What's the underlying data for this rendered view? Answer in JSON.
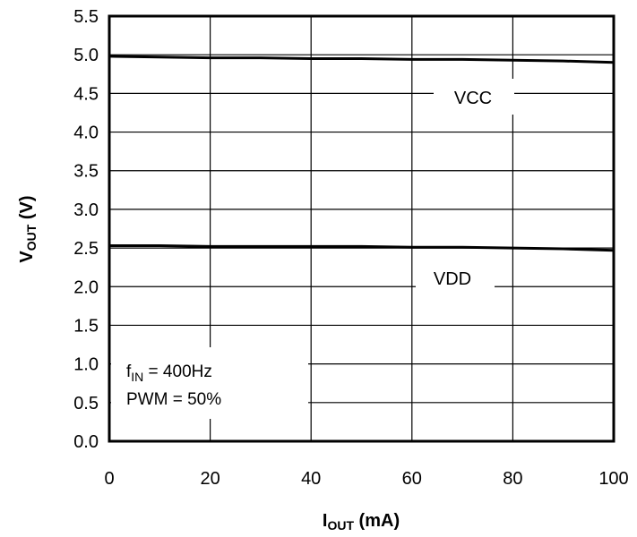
{
  "chart_data": {
    "type": "line",
    "title": "",
    "xlabel": {
      "main": "I",
      "sub": "OUT",
      "suffix": " (mA)"
    },
    "ylabel": {
      "main": "V",
      "sub": "OUT",
      "suffix": " (V)"
    },
    "xlim": [
      0,
      100
    ],
    "ylim": [
      0,
      5.5
    ],
    "xticks": [
      0,
      20,
      40,
      60,
      80,
      100
    ],
    "yticks": [
      0,
      0.5,
      1,
      1.5,
      2,
      2.5,
      3,
      3.5,
      4,
      4.5,
      5,
      5.5
    ],
    "xtick_labels": [
      "0",
      "20",
      "40",
      "60",
      "80",
      "100"
    ],
    "ytick_labels": [
      "0.0",
      "0.5",
      "1.0",
      "1.5",
      "2.0",
      "2.5",
      "3.0",
      "3.5",
      "4.0",
      "4.5",
      "5.0",
      "5.5"
    ],
    "grid": true,
    "series": [
      {
        "name": "VCC",
        "x": [
          0,
          10,
          20,
          30,
          40,
          50,
          60,
          70,
          80,
          90,
          100
        ],
        "y": [
          4.98,
          4.97,
          4.96,
          4.96,
          4.95,
          4.95,
          4.94,
          4.94,
          4.93,
          4.92,
          4.9
        ]
      },
      {
        "name": "VDD",
        "x": [
          0,
          10,
          20,
          30,
          40,
          50,
          60,
          70,
          80,
          90,
          100
        ],
        "y": [
          2.53,
          2.53,
          2.52,
          2.52,
          2.52,
          2.52,
          2.51,
          2.51,
          2.5,
          2.49,
          2.47
        ]
      }
    ],
    "annotations": {
      "fin_main": "f",
      "fin_sub": "IN",
      "fin_value": " = 400Hz",
      "pwm": "PWM = 50%"
    }
  }
}
